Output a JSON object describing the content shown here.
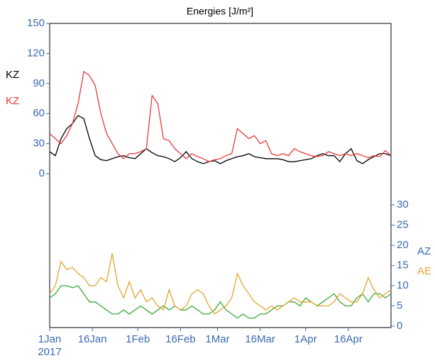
{
  "chart_data": {
    "type": "line",
    "title": "Energies [J/m²]",
    "x": [
      "2017-01-01",
      "2017-01-03",
      "2017-01-05",
      "2017-01-07",
      "2017-01-09",
      "2017-01-11",
      "2017-01-13",
      "2017-01-15",
      "2017-01-17",
      "2017-01-19",
      "2017-01-21",
      "2017-01-23",
      "2017-01-25",
      "2017-01-27",
      "2017-01-29",
      "2017-01-31",
      "2017-02-02",
      "2017-02-04",
      "2017-02-06",
      "2017-02-08",
      "2017-02-10",
      "2017-02-12",
      "2017-02-14",
      "2017-02-16",
      "2017-02-18",
      "2017-02-20",
      "2017-02-22",
      "2017-02-24",
      "2017-02-26",
      "2017-02-28",
      "2017-03-02",
      "2017-03-04",
      "2017-03-06",
      "2017-03-08",
      "2017-03-10",
      "2017-03-12",
      "2017-03-14",
      "2017-03-16",
      "2017-03-18",
      "2017-03-20",
      "2017-03-22",
      "2017-03-24",
      "2017-03-26",
      "2017-03-28",
      "2017-03-30",
      "2017-04-01",
      "2017-04-03",
      "2017-04-05",
      "2017-04-07",
      "2017-04-09",
      "2017-04-11",
      "2017-04-13",
      "2017-04-15",
      "2017-04-17",
      "2017-04-19",
      "2017-04-21",
      "2017-04-23",
      "2017-04-25",
      "2017-04-27",
      "2017-04-29",
      "2017-05-01"
    ],
    "xlim": [
      "2017-01-01",
      "2017-05-01"
    ],
    "xticks": [
      {
        "value": "2017-01-01",
        "label": "1Jan"
      },
      {
        "value": "2017-01-16",
        "label": "16Jan"
      },
      {
        "value": "2017-02-01",
        "label": "1Feb"
      },
      {
        "value": "2017-02-16",
        "label": "16Feb"
      },
      {
        "value": "2017-03-01",
        "label": "1Mar"
      },
      {
        "value": "2017-03-16",
        "label": "16Mar"
      },
      {
        "value": "2017-04-01",
        "label": "1Apr"
      },
      {
        "value": "2017-04-16",
        "label": "16Apr"
      }
    ],
    "year_label": "2017",
    "ylim": [
      0,
      150
    ],
    "yticks": [
      0,
      30,
      60,
      90,
      120,
      150
    ],
    "y2lim": [
      0,
      30
    ],
    "y2ticks": [
      0,
      5,
      10,
      15,
      20,
      25,
      30
    ],
    "axis_color": "#3a6ab0",
    "series": [
      {
        "name": "KZ",
        "color": "#000000",
        "label_color": "#000000",
        "values": [
          22,
          18,
          35,
          45,
          50,
          58,
          55,
          35,
          18,
          14,
          13,
          15,
          17,
          18,
          16,
          15,
          20,
          25,
          21,
          18,
          17,
          15,
          12,
          16,
          22,
          15,
          12,
          10,
          12,
          13,
          10,
          13,
          15,
          17,
          18,
          20,
          17,
          16,
          15,
          15,
          15,
          14,
          12,
          12,
          13,
          14,
          15,
          18,
          20,
          18,
          18,
          12,
          20,
          25,
          13,
          10,
          14,
          17,
          20,
          20,
          18
        ]
      },
      {
        "name": "KZ",
        "color": "#e8393b",
        "label_color": "#e8393b",
        "values": [
          40,
          35,
          30,
          38,
          50,
          70,
          102,
          98,
          88,
          60,
          40,
          30,
          20,
          15,
          20,
          20,
          22,
          25,
          78,
          70,
          35,
          33,
          25,
          20,
          15,
          20,
          17,
          15,
          12,
          14,
          15,
          18,
          20,
          45,
          40,
          35,
          38,
          30,
          33,
          20,
          18,
          20,
          18,
          25,
          22,
          20,
          18,
          17,
          18,
          22,
          20,
          18,
          20,
          18,
          20,
          18,
          16,
          18,
          17,
          23,
          18
        ]
      },
      {
        "name": "AZ",
        "color": "#3aa83a",
        "label_color": "#3a6ab0",
        "axis": "y2",
        "values": [
          7,
          8,
          10,
          10,
          9.5,
          10,
          8,
          6,
          6,
          5,
          4,
          3,
          3,
          4,
          3,
          4,
          5,
          4,
          3,
          4,
          5,
          4,
          5,
          4,
          4,
          5,
          4,
          3,
          3,
          4,
          6,
          4,
          3,
          2,
          3,
          2,
          2,
          3,
          3,
          4,
          5,
          5,
          6,
          6,
          5,
          7,
          6,
          5,
          6,
          7,
          8,
          6,
          5,
          5,
          7,
          8,
          6,
          8,
          8,
          7,
          8
        ]
      },
      {
        "name": "AE",
        "color": "#e3a52c",
        "label_color": "#e3a52c",
        "axis": "y2",
        "values": [
          8,
          10,
          16,
          14,
          14.5,
          13,
          12,
          10,
          10,
          12,
          11,
          18,
          10,
          7,
          11,
          7,
          9,
          6,
          7,
          5,
          4,
          9,
          5,
          4,
          5,
          8,
          9,
          8,
          5,
          3,
          4,
          5,
          7,
          13,
          10,
          8,
          6,
          5,
          4,
          5,
          4,
          5,
          6,
          7,
          6,
          6,
          6,
          5,
          5,
          5,
          6,
          8,
          7,
          6,
          6,
          8,
          12,
          9,
          7,
          8,
          9
        ]
      }
    ]
  }
}
